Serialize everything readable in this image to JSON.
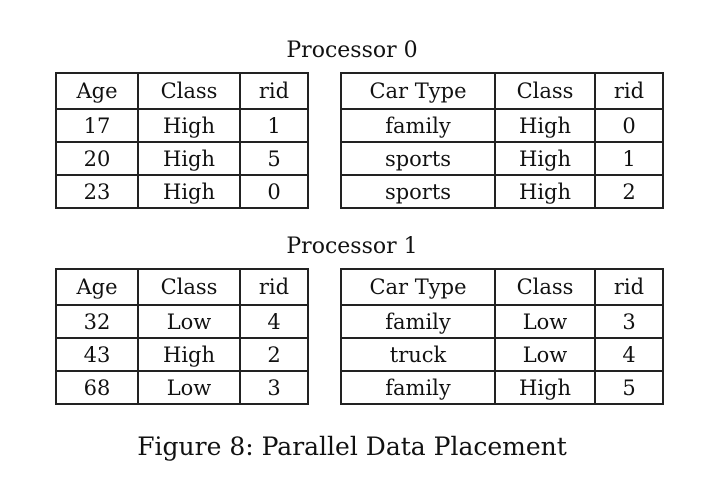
{
  "processors": [
    {
      "title": "Processor 0",
      "left_table": {
        "headers": [
          "Age",
          "Class",
          "rid"
        ],
        "rows": [
          [
            "17",
            "High",
            "1"
          ],
          [
            "20",
            "High",
            "5"
          ],
          [
            "23",
            "High",
            "0"
          ]
        ]
      },
      "right_table": {
        "headers": [
          "Car Type",
          "Class",
          "rid"
        ],
        "rows": [
          [
            "family",
            "High",
            "0"
          ],
          [
            "sports",
            "High",
            "1"
          ],
          [
            "sports",
            "High",
            "2"
          ]
        ]
      }
    },
    {
      "title": "Processor 1",
      "left_table": {
        "headers": [
          "Age",
          "Class",
          "rid"
        ],
        "rows": [
          [
            "32",
            "Low",
            "4"
          ],
          [
            "43",
            "High",
            "2"
          ],
          [
            "68",
            "Low",
            "3"
          ]
        ]
      },
      "right_table": {
        "headers": [
          "Car Type",
          "Class",
          "rid"
        ],
        "rows": [
          [
            "family",
            "Low",
            "3"
          ],
          [
            "truck",
            "Low",
            "4"
          ],
          [
            "family",
            "High",
            "5"
          ]
        ]
      }
    }
  ],
  "caption": "Figure 8: Parallel Data Placement"
}
